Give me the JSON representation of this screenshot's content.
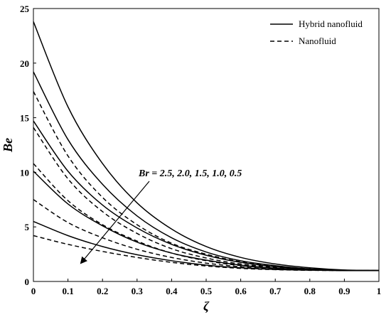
{
  "chart_data": {
    "type": "line",
    "xlabel": "ζ",
    "ylabel": "Be",
    "xlim": [
      0,
      1
    ],
    "ylim": [
      0,
      25
    ],
    "x_ticks": [
      "0",
      "0.1",
      "0.2",
      "0.3",
      "0.4",
      "0.5",
      "0.6",
      "0.7",
      "0.8",
      "0.9",
      "1"
    ],
    "y_ticks": [
      "0",
      "5",
      "10",
      "15",
      "20",
      "25"
    ],
    "legend": {
      "position": "top-right",
      "entries": [
        {
          "label": "Hybrid nanofluid",
          "style": "solid"
        },
        {
          "label": "Nanofluid",
          "style": "dashed"
        }
      ]
    },
    "annotation": "Br = 2.5, 2.0, 1.5, 1.0, 0.5",
    "x": [
      0,
      0.1,
      0.2,
      0.3,
      0.4,
      0.5,
      0.6,
      0.7,
      0.8,
      0.9,
      1.0
    ],
    "series": [
      {
        "style": "solid",
        "values": [
          23.8,
          16.0,
          10.8,
          7.2,
          4.8,
          3.2,
          2.2,
          1.6,
          1.25,
          1.05,
          1.0
        ]
      },
      {
        "style": "solid",
        "values": [
          19.2,
          13.0,
          8.9,
          6.0,
          4.0,
          2.7,
          1.9,
          1.45,
          1.15,
          1.03,
          1.0
        ]
      },
      {
        "style": "solid",
        "values": [
          14.7,
          10.1,
          7.0,
          4.9,
          3.4,
          2.4,
          1.75,
          1.35,
          1.12,
          1.02,
          1.0
        ]
      },
      {
        "style": "solid",
        "values": [
          10.1,
          7.1,
          5.1,
          3.6,
          2.6,
          1.95,
          1.5,
          1.22,
          1.08,
          1.01,
          1.0
        ]
      },
      {
        "style": "solid",
        "values": [
          5.5,
          4.2,
          3.2,
          2.45,
          1.9,
          1.5,
          1.25,
          1.1,
          1.03,
          1.0,
          1.0
        ]
      },
      {
        "style": "dashed",
        "values": [
          17.4,
          11.5,
          7.7,
          5.2,
          3.5,
          2.5,
          1.8,
          1.4,
          1.15,
          1.03,
          1.0
        ]
      },
      {
        "style": "dashed",
        "values": [
          14.1,
          9.4,
          6.4,
          4.4,
          3.0,
          2.15,
          1.6,
          1.3,
          1.1,
          1.02,
          1.0
        ]
      },
      {
        "style": "dashed",
        "values": [
          10.8,
          7.4,
          5.2,
          3.7,
          2.6,
          1.9,
          1.45,
          1.2,
          1.07,
          1.01,
          1.0
        ]
      },
      {
        "style": "dashed",
        "values": [
          7.5,
          5.4,
          4.0,
          2.95,
          2.2,
          1.68,
          1.35,
          1.15,
          1.05,
          1.0,
          1.0
        ]
      },
      {
        "style": "dashed",
        "values": [
          4.2,
          3.4,
          2.75,
          2.2,
          1.75,
          1.42,
          1.2,
          1.08,
          1.02,
          1.0,
          1.0
        ]
      }
    ]
  }
}
